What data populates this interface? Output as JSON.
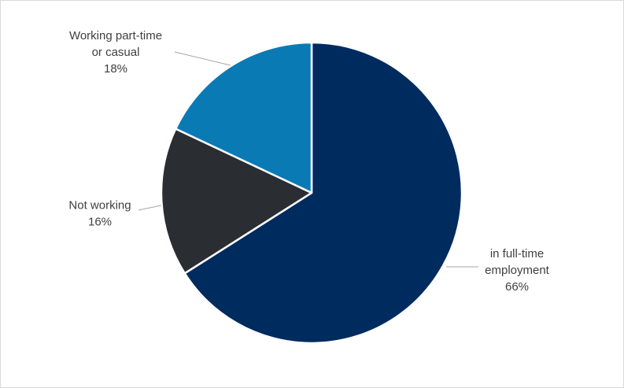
{
  "chart_data": {
    "type": "pie",
    "title": "",
    "slices": [
      {
        "name": "in full-time employment",
        "label_lines": [
          "in full-time",
          "employment"
        ],
        "value": 66,
        "value_label": "66%",
        "color": "#002b5f"
      },
      {
        "name": "Not working",
        "label_lines": [
          "Not working"
        ],
        "value": 16,
        "value_label": "16%",
        "color": "#2a2d31"
      },
      {
        "name": "Working part-time or casual",
        "label_lines": [
          "Working part-time",
          "or casual"
        ],
        "value": 18,
        "value_label": "18%",
        "color": "#0a7ab5"
      }
    ],
    "start_angle_deg": 0,
    "direction": "clockwise",
    "legend": "none",
    "leader_line_color": "#a6a6a6"
  }
}
